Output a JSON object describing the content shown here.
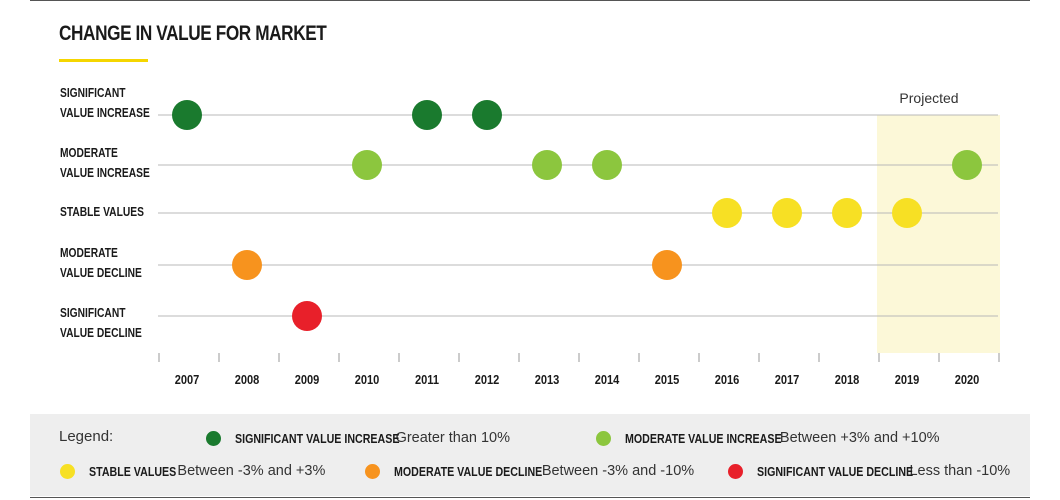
{
  "title": "CHANGE IN VALUE FOR MARKET",
  "chart_data": {
    "type": "scatter",
    "categories": [
      {
        "line1": "SIGNIFICANT",
        "line2": "VALUE INCREASE",
        "color": "#1a7a2e"
      },
      {
        "line1": "MODERATE",
        "line2": "VALUE INCREASE",
        "color": "#8cc63e"
      },
      {
        "line1": "STABLE VALUES",
        "line2": "",
        "color": "#f7e024"
      },
      {
        "line1": "MODERATE",
        "line2": "VALUE DECLINE",
        "color": "#f7931e"
      },
      {
        "line1": "SIGNIFICANT",
        "line2": "VALUE DECLINE",
        "color": "#e8202a"
      }
    ],
    "years": [
      "2007",
      "2008",
      "2009",
      "2010",
      "2011",
      "2012",
      "2013",
      "2014",
      "2015",
      "2016",
      "2017",
      "2018",
      "2019",
      "2020"
    ],
    "points": [
      {
        "year": "2007",
        "category": 0
      },
      {
        "year": "2008",
        "category": 3
      },
      {
        "year": "2009",
        "category": 4
      },
      {
        "year": "2010",
        "category": 1
      },
      {
        "year": "2011",
        "category": 0
      },
      {
        "year": "2012",
        "category": 0
      },
      {
        "year": "2013",
        "category": 1
      },
      {
        "year": "2014",
        "category": 1
      },
      {
        "year": "2015",
        "category": 3
      },
      {
        "year": "2016",
        "category": 2
      },
      {
        "year": "2017",
        "category": 2
      },
      {
        "year": "2018",
        "category": 2
      },
      {
        "year": "2019",
        "category": 2
      },
      {
        "year": "2020",
        "category": 1
      }
    ],
    "projected": {
      "label": "Projected",
      "from": "2019",
      "to": "2020",
      "color": "#fcf8d8"
    }
  },
  "legend": {
    "title": "Legend:",
    "items": [
      {
        "name": "SIGNIFICANT VALUE INCREASE",
        "desc": "Greater than 10%",
        "color": "#1a7a2e"
      },
      {
        "name": "MODERATE VALUE INCREASE",
        "desc": "Between +3% and +10%",
        "color": "#8cc63e"
      },
      {
        "name": "STABLE VALUES",
        "desc": "Between -3% and +3%",
        "color": "#f7e024"
      },
      {
        "name": "MODERATE VALUE DECLINE",
        "desc": "Between -3% and -10%",
        "color": "#f7931e"
      },
      {
        "name": "SIGNIFICANT VALUE DECLINE",
        "desc": "Less than -10%",
        "color": "#e8202a"
      }
    ]
  }
}
